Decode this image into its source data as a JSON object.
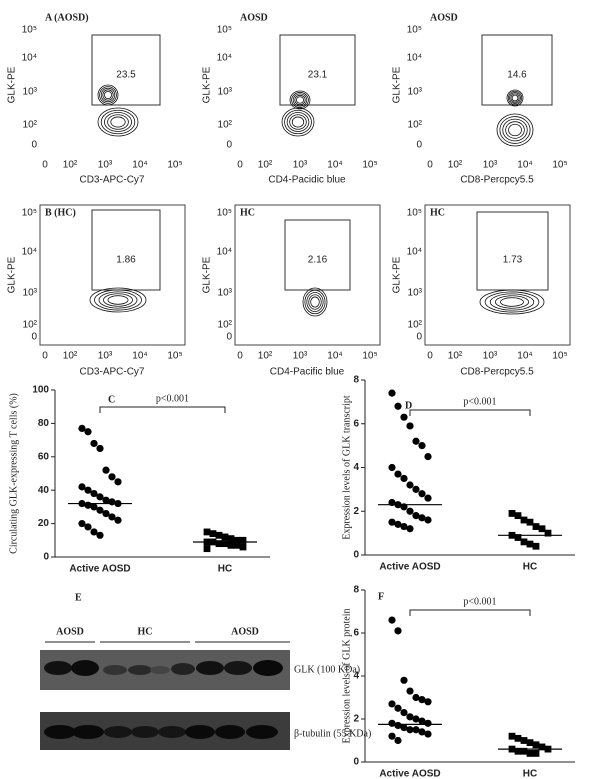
{
  "flow": {
    "panels": [
      {
        "label": "A (AOSD)",
        "gate": 23.5,
        "xlabel": "CD3-APC-Cy7",
        "ylabel": "GLK-PE",
        "xticks": [
          "0",
          "10²",
          "10³",
          "10⁴",
          "10⁵"
        ],
        "yticks": [
          "0",
          "10²",
          "10³",
          "10⁴",
          "10⁵"
        ]
      },
      {
        "label": "AOSD",
        "gate": 23.1,
        "xlabel": "CD4-Pacidic blue",
        "ylabel": "GLK-PE",
        "xticks": [
          "0",
          "10²",
          "10³",
          "10⁴",
          "10⁵"
        ],
        "yticks": [
          "0",
          "10²",
          "10³",
          "10⁴",
          "10⁵"
        ]
      },
      {
        "label": "AOSD",
        "gate": 14.6,
        "xlabel": "CD8-Percpcy5.5",
        "ylabel": "GLK-PE",
        "xticks": [
          "0",
          "10²",
          "10³",
          "10⁴",
          "10⁵"
        ],
        "yticks": [
          "0",
          "10²",
          "10³",
          "10⁴",
          "10⁵"
        ]
      },
      {
        "label": "B (HC)",
        "gate": 1.86,
        "xlabel": "CD3-APC-Cy7",
        "ylabel": "GLK-PE",
        "xticks": [
          "0",
          "10²",
          "10³",
          "10⁴",
          "10⁵"
        ],
        "yticks": [
          "0",
          "10²",
          "10³",
          "10⁴",
          "10⁵"
        ]
      },
      {
        "label": "HC",
        "gate": 2.16,
        "xlabel": "CD4-Pacific blue",
        "ylabel": "GLK-PE",
        "xticks": [
          "0",
          "10²",
          "10³",
          "10⁴",
          "10⁵"
        ],
        "yticks": [
          "0",
          "10²",
          "10³",
          "10⁴",
          "10⁵"
        ]
      },
      {
        "label": "HC",
        "gate": 1.73,
        "xlabel": "CD8-Percpcy5.5",
        "ylabel": "GLK-PE",
        "xticks": [
          "0",
          "10²",
          "10³",
          "10⁴",
          "10⁵"
        ],
        "yticks": [
          "0",
          "10²",
          "10³",
          "10⁴",
          "10⁵"
        ]
      }
    ]
  },
  "blot": {
    "label": "E",
    "lanes": [
      "AOSD",
      "HC",
      "AOSD"
    ],
    "bands": [
      "GLK (100 KDa)",
      "β-tubulin (55 KDa)"
    ]
  },
  "chart_data": [
    {
      "type": "dotplot",
      "label": "C",
      "ylabel": "Circulating GLK-expressing T cells (%)",
      "annotation": "p<0.001",
      "categories": [
        "Active AOSD",
        "HC"
      ],
      "values": [
        [
          77,
          75,
          68,
          65,
          52,
          48,
          45,
          42,
          40,
          38,
          36,
          34,
          33,
          32,
          32,
          31,
          30,
          28,
          26,
          24,
          22,
          20,
          18,
          15,
          13
        ],
        [
          15,
          14,
          13,
          12,
          11,
          10,
          10,
          9,
          9,
          8,
          8,
          7,
          7,
          6,
          5
        ]
      ],
      "medians": [
        32,
        9
      ],
      "ylim": [
        0,
        100
      ],
      "yticks": [
        0,
        20,
        40,
        60,
        80,
        100
      ]
    },
    {
      "type": "dotplot",
      "label": "D",
      "ylabel": "Expression levels of GLK transcript",
      "annotation": "p<0.001",
      "categories": [
        "Active AOSD",
        "HC"
      ],
      "values": [
        [
          7.4,
          6.8,
          6.3,
          5.9,
          5.2,
          5.0,
          4.5,
          4.0,
          3.7,
          3.5,
          3.2,
          3.0,
          2.8,
          2.6,
          2.4,
          2.3,
          2.2,
          2.0,
          1.8,
          1.7,
          1.6,
          1.5,
          1.4,
          1.3,
          1.2
        ],
        [
          1.9,
          1.8,
          1.6,
          1.5,
          1.3,
          1.2,
          1.0,
          0.9,
          0.8,
          0.6,
          0.5,
          0.4
        ]
      ],
      "medians": [
        2.3,
        0.9
      ],
      "ylim": [
        0,
        8
      ],
      "yticks": [
        0,
        2,
        4,
        6,
        8
      ]
    },
    {
      "type": "dotplot",
      "label": "F",
      "ylabel": "Expression levels of GLK protein",
      "annotation": "p<0.001",
      "categories": [
        "Active AOSD",
        "HC"
      ],
      "values": [
        [
          6.6,
          6.1,
          3.8,
          3.3,
          3.0,
          2.9,
          2.8,
          2.7,
          2.5,
          2.3,
          2.1,
          2.0,
          1.9,
          1.8,
          1.8,
          1.7,
          1.6,
          1.5,
          1.5,
          1.4,
          1.3,
          1.2,
          1.0
        ],
        [
          1.2,
          1.1,
          1.0,
          0.9,
          0.8,
          0.7,
          0.6,
          0.6,
          0.5,
          0.5,
          0.4,
          0.4
        ]
      ],
      "medians": [
        1.75,
        0.6
      ],
      "ylim": [
        0,
        8
      ],
      "yticks": [
        0,
        2,
        4,
        6,
        8
      ]
    }
  ]
}
